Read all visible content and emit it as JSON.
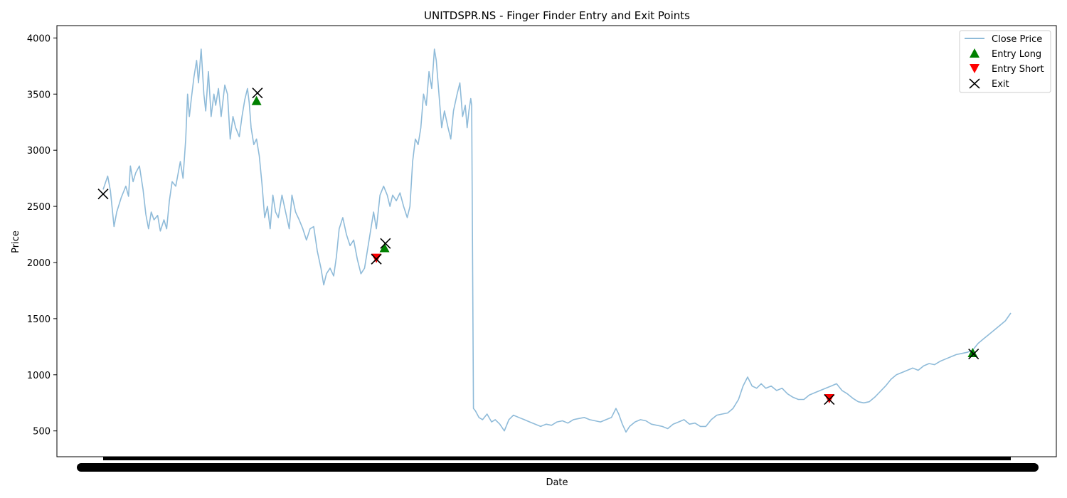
{
  "chart_data": {
    "type": "line",
    "title": "UNITDSPR.NS - Finger Finder Entry and Exit Points",
    "xlabel": "Date",
    "ylabel": "Price",
    "ylim": [
      270,
      4110
    ],
    "yticks": [
      500,
      1000,
      1500,
      2000,
      2500,
      3000,
      3500,
      4000
    ],
    "x_tick_labels_legible": false,
    "grid": false,
    "legend_placement": "top-right",
    "legend": [
      "Close Price",
      "Entry Long",
      "Entry Short",
      "Exit"
    ],
    "colors": {
      "close_price": "#1f77b4",
      "entry_long": "#008000",
      "entry_short": "#ff0000",
      "exit": "#000000"
    },
    "x_domain": [
      0,
      1000
    ],
    "close_price": [
      [
        0,
        2650
      ],
      [
        5,
        2770
      ],
      [
        8,
        2640
      ],
      [
        12,
        2320
      ],
      [
        15,
        2450
      ],
      [
        20,
        2580
      ],
      [
        25,
        2680
      ],
      [
        28,
        2590
      ],
      [
        30,
        2860
      ],
      [
        33,
        2720
      ],
      [
        36,
        2800
      ],
      [
        40,
        2860
      ],
      [
        44,
        2650
      ],
      [
        47,
        2430
      ],
      [
        50,
        2300
      ],
      [
        53,
        2450
      ],
      [
        56,
        2380
      ],
      [
        60,
        2420
      ],
      [
        63,
        2280
      ],
      [
        67,
        2380
      ],
      [
        70,
        2300
      ],
      [
        73,
        2550
      ],
      [
        76,
        2720
      ],
      [
        80,
        2680
      ],
      [
        85,
        2900
      ],
      [
        88,
        2750
      ],
      [
        91,
        3100
      ],
      [
        93,
        3500
      ],
      [
        95,
        3300
      ],
      [
        97,
        3450
      ],
      [
        100,
        3650
      ],
      [
        103,
        3800
      ],
      [
        105,
        3600
      ],
      [
        108,
        3900
      ],
      [
        111,
        3500
      ],
      [
        113,
        3350
      ],
      [
        116,
        3700
      ],
      [
        119,
        3300
      ],
      [
        122,
        3500
      ],
      [
        124,
        3400
      ],
      [
        127,
        3550
      ],
      [
        130,
        3300
      ],
      [
        134,
        3580
      ],
      [
        137,
        3500
      ],
      [
        140,
        3100
      ],
      [
        143,
        3300
      ],
      [
        146,
        3200
      ],
      [
        150,
        3120
      ],
      [
        153,
        3300
      ],
      [
        156,
        3450
      ],
      [
        159,
        3550
      ],
      [
        161,
        3420
      ],
      [
        163,
        3200
      ],
      [
        166,
        3050
      ],
      [
        169,
        3100
      ],
      [
        172,
        2950
      ],
      [
        175,
        2700
      ],
      [
        178,
        2400
      ],
      [
        181,
        2500
      ],
      [
        184,
        2300
      ],
      [
        187,
        2600
      ],
      [
        190,
        2450
      ],
      [
        193,
        2400
      ],
      [
        197,
        2600
      ],
      [
        201,
        2450
      ],
      [
        205,
        2300
      ],
      [
        208,
        2600
      ],
      [
        212,
        2450
      ],
      [
        216,
        2380
      ],
      [
        220,
        2300
      ],
      [
        224,
        2200
      ],
      [
        228,
        2300
      ],
      [
        232,
        2320
      ],
      [
        236,
        2100
      ],
      [
        240,
        1950
      ],
      [
        243,
        1800
      ],
      [
        246,
        1900
      ],
      [
        250,
        1950
      ],
      [
        254,
        1880
      ],
      [
        257,
        2050
      ],
      [
        260,
        2300
      ],
      [
        264,
        2400
      ],
      [
        268,
        2250
      ],
      [
        272,
        2150
      ],
      [
        276,
        2200
      ],
      [
        280,
        2030
      ],
      [
        284,
        1900
      ],
      [
        288,
        1950
      ],
      [
        291,
        2100
      ],
      [
        295,
        2300
      ],
      [
        298,
        2450
      ],
      [
        301,
        2300
      ],
      [
        305,
        2600
      ],
      [
        309,
        2680
      ],
      [
        313,
        2600
      ],
      [
        316,
        2500
      ],
      [
        319,
        2600
      ],
      [
        323,
        2550
      ],
      [
        327,
        2620
      ],
      [
        331,
        2500
      ],
      [
        335,
        2400
      ],
      [
        338,
        2500
      ],
      [
        341,
        2900
      ],
      [
        344,
        3100
      ],
      [
        347,
        3050
      ],
      [
        350,
        3200
      ],
      [
        353,
        3500
      ],
      [
        356,
        3400
      ],
      [
        359,
        3700
      ],
      [
        362,
        3550
      ],
      [
        365,
        3900
      ],
      [
        367,
        3800
      ],
      [
        370,
        3500
      ],
      [
        373,
        3200
      ],
      [
        376,
        3350
      ],
      [
        380,
        3200
      ],
      [
        383,
        3100
      ],
      [
        386,
        3350
      ],
      [
        390,
        3500
      ],
      [
        393,
        3600
      ],
      [
        396,
        3300
      ],
      [
        399,
        3400
      ],
      [
        401,
        3200
      ],
      [
        403,
        3350
      ],
      [
        405,
        3460
      ],
      [
        406,
        3400
      ],
      [
        408,
        700
      ],
      [
        410,
        680
      ],
      [
        414,
        620
      ],
      [
        418,
        600
      ],
      [
        423,
        650
      ],
      [
        428,
        580
      ],
      [
        432,
        600
      ],
      [
        437,
        560
      ],
      [
        442,
        500
      ],
      [
        447,
        600
      ],
      [
        452,
        640
      ],
      [
        458,
        620
      ],
      [
        464,
        600
      ],
      [
        470,
        580
      ],
      [
        476,
        560
      ],
      [
        482,
        540
      ],
      [
        488,
        560
      ],
      [
        494,
        550
      ],
      [
        500,
        580
      ],
      [
        506,
        590
      ],
      [
        512,
        570
      ],
      [
        518,
        600
      ],
      [
        524,
        610
      ],
      [
        530,
        620
      ],
      [
        536,
        600
      ],
      [
        542,
        590
      ],
      [
        548,
        580
      ],
      [
        554,
        600
      ],
      [
        560,
        620
      ],
      [
        565,
        700
      ],
      [
        568,
        650
      ],
      [
        572,
        560
      ],
      [
        576,
        490
      ],
      [
        580,
        540
      ],
      [
        586,
        580
      ],
      [
        592,
        600
      ],
      [
        598,
        590
      ],
      [
        604,
        560
      ],
      [
        610,
        550
      ],
      [
        616,
        540
      ],
      [
        622,
        520
      ],
      [
        628,
        560
      ],
      [
        634,
        580
      ],
      [
        640,
        600
      ],
      [
        646,
        560
      ],
      [
        652,
        570
      ],
      [
        658,
        540
      ],
      [
        664,
        540
      ],
      [
        670,
        600
      ],
      [
        676,
        640
      ],
      [
        682,
        650
      ],
      [
        688,
        660
      ],
      [
        694,
        700
      ],
      [
        700,
        780
      ],
      [
        705,
        900
      ],
      [
        710,
        980
      ],
      [
        715,
        900
      ],
      [
        720,
        880
      ],
      [
        725,
        920
      ],
      [
        730,
        880
      ],
      [
        736,
        900
      ],
      [
        742,
        860
      ],
      [
        748,
        880
      ],
      [
        754,
        830
      ],
      [
        760,
        800
      ],
      [
        766,
        780
      ],
      [
        772,
        780
      ],
      [
        778,
        820
      ],
      [
        784,
        840
      ],
      [
        790,
        860
      ],
      [
        796,
        880
      ],
      [
        802,
        900
      ],
      [
        808,
        920
      ],
      [
        814,
        860
      ],
      [
        820,
        830
      ],
      [
        826,
        790
      ],
      [
        832,
        760
      ],
      [
        838,
        750
      ],
      [
        844,
        760
      ],
      [
        850,
        800
      ],
      [
        856,
        850
      ],
      [
        862,
        900
      ],
      [
        868,
        960
      ],
      [
        874,
        1000
      ],
      [
        880,
        1020
      ],
      [
        886,
        1040
      ],
      [
        892,
        1060
      ],
      [
        898,
        1040
      ],
      [
        904,
        1080
      ],
      [
        910,
        1100
      ],
      [
        916,
        1090
      ],
      [
        922,
        1120
      ],
      [
        928,
        1140
      ],
      [
        934,
        1160
      ],
      [
        940,
        1180
      ],
      [
        946,
        1190
      ],
      [
        952,
        1200
      ],
      [
        958,
        1220
      ],
      [
        964,
        1280
      ],
      [
        970,
        1320
      ],
      [
        976,
        1360
      ],
      [
        982,
        1400
      ],
      [
        988,
        1440
      ],
      [
        994,
        1480
      ],
      [
        1000,
        1550
      ]
    ],
    "entry_long": [
      [
        169,
        3440
      ],
      [
        310,
        2130
      ],
      [
        958,
        1195
      ]
    ],
    "entry_short": [
      [
        301,
        2040
      ],
      [
        800,
        790
      ]
    ],
    "exit": [
      [
        0,
        2610
      ],
      [
        170,
        3510
      ],
      [
        301,
        2030
      ],
      [
        311,
        2170
      ],
      [
        800,
        780
      ],
      [
        959,
        1185
      ]
    ]
  }
}
